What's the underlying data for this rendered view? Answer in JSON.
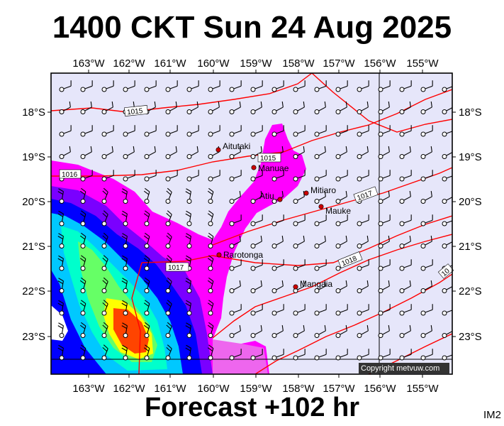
{
  "header": {
    "title": "1400 CKT Sun 24 Aug 2025"
  },
  "footer": {
    "forecast": "Forecast +102 hr",
    "product": "IM2"
  },
  "map": {
    "lon_labels": [
      "163°W",
      "162°W",
      "161°W",
      "160°W",
      "159°W",
      "158°W",
      "157°W",
      "156°W",
      "155°W"
    ],
    "lat_labels": [
      "18°S",
      "19°S",
      "20°S",
      "21°S",
      "22°S",
      "23°S"
    ],
    "colors": {
      "background": "#e6e6fa",
      "rain_light": "#ff00ff",
      "rain_medium": "#0000ff",
      "rain_heavy": "#00ffff",
      "rain_peak": "#ff0000",
      "isobar": "#ff0000"
    },
    "places": [
      {
        "name": "Aitutaki"
      },
      {
        "name": "Manuae"
      },
      {
        "name": "Atiu"
      },
      {
        "name": "Mitiaro"
      },
      {
        "name": "Mauke"
      },
      {
        "name": "Rarotonga"
      },
      {
        "name": "Mangaia"
      }
    ],
    "isobar_labels": [
      "1015",
      "1016",
      "1015",
      "1017",
      "1017",
      "1018",
      "10"
    ],
    "copyright": "Copyright metvuw.com",
    "wind_barb_icon": "wind-barb-icon"
  }
}
